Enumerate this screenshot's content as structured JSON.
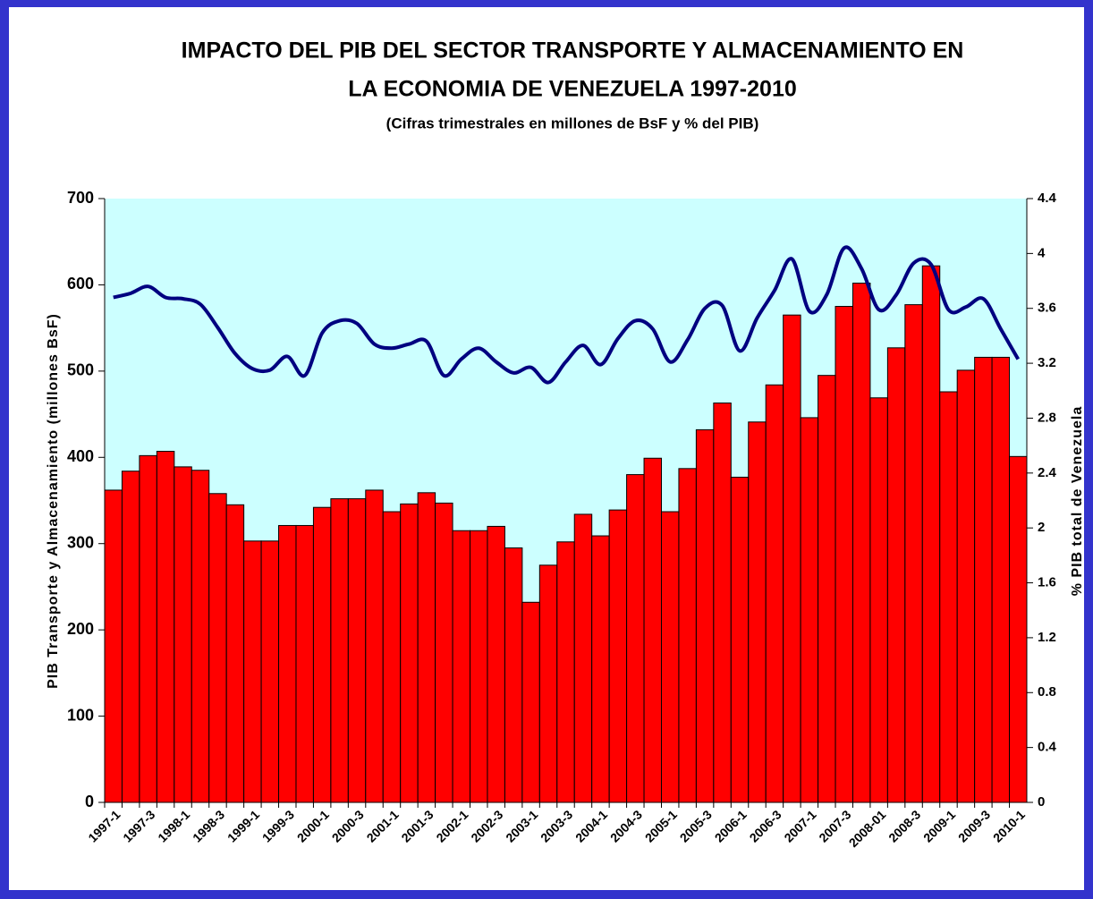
{
  "chart_data": {
    "type": "bar_line",
    "title": "IMPACTO DEL PIB DEL SECTOR TRANSPORTE Y ALMACENAMIENTO EN",
    "title_line2": "LA ECONOMIA DE VENEZUELA 1997-2010",
    "subtitle": "(Cifras trimestrales en millones de BsF y % del PIB)",
    "ylabel": "PIB Transporte y Almacenamiento (millones BsF)",
    "y2label": "% PIB total de Venezuela",
    "categories": [
      "1997-1",
      null,
      "1997-3",
      null,
      "1998-1",
      null,
      "1998-3",
      null,
      "1999-1",
      null,
      "1999-3",
      null,
      "2000-1",
      null,
      "2000-3",
      null,
      "2001-1",
      null,
      "2001-3",
      null,
      "2002-1",
      null,
      "2002-3",
      null,
      "2003-1",
      null,
      "2003-3",
      null,
      "2004-1",
      null,
      "2004-3",
      null,
      "2005-1",
      null,
      "2005-3",
      null,
      "2006-1",
      null,
      "2006-3",
      null,
      "2007-1",
      null,
      "2007-3",
      null,
      "2008-01",
      null,
      "2008-3",
      null,
      "2009-1",
      null,
      "2009-3",
      null,
      "2010-1"
    ],
    "series": [
      {
        "type": "bar",
        "color": "#ff0000",
        "values": [
          362,
          384,
          402,
          407,
          389,
          385,
          358,
          345,
          303,
          303,
          321,
          321,
          342,
          352,
          352,
          362,
          337,
          346,
          359,
          347,
          315,
          315,
          320,
          295,
          232,
          275,
          302,
          334,
          309,
          339,
          380,
          399,
          337,
          387,
          432,
          463,
          377,
          441,
          484,
          565,
          446,
          495,
          575,
          602,
          469,
          527,
          577,
          622,
          476,
          501,
          516,
          516,
          401
        ]
      },
      {
        "type": "line",
        "axis": "y2",
        "color": "#000080",
        "values": [
          3.68,
          3.71,
          3.76,
          3.68,
          3.67,
          3.63,
          3.46,
          3.27,
          3.16,
          3.15,
          3.25,
          3.11,
          3.42,
          3.51,
          3.49,
          3.34,
          3.31,
          3.34,
          3.36,
          3.11,
          3.23,
          3.31,
          3.21,
          3.13,
          3.17,
          3.06,
          3.21,
          3.33,
          3.19,
          3.38,
          3.51,
          3.45,
          3.21,
          3.37,
          3.6,
          3.62,
          3.29,
          3.53,
          3.73,
          3.96,
          3.58,
          3.7,
          4.04,
          3.89,
          3.59,
          3.7,
          3.93,
          3.92,
          3.59,
          3.61,
          3.67,
          3.45,
          3.23
        ]
      }
    ],
    "ylim": [
      0,
      700
    ],
    "yticks": [
      0,
      100,
      200,
      300,
      400,
      500,
      600,
      700
    ],
    "y2lim": [
      0,
      4.4
    ],
    "y2ticks": [
      0,
      0.4,
      0.8,
      1.2,
      1.6,
      2,
      2.4,
      2.8,
      3.2,
      3.6,
      4,
      4.4
    ],
    "plot_background": "#ccffff"
  }
}
